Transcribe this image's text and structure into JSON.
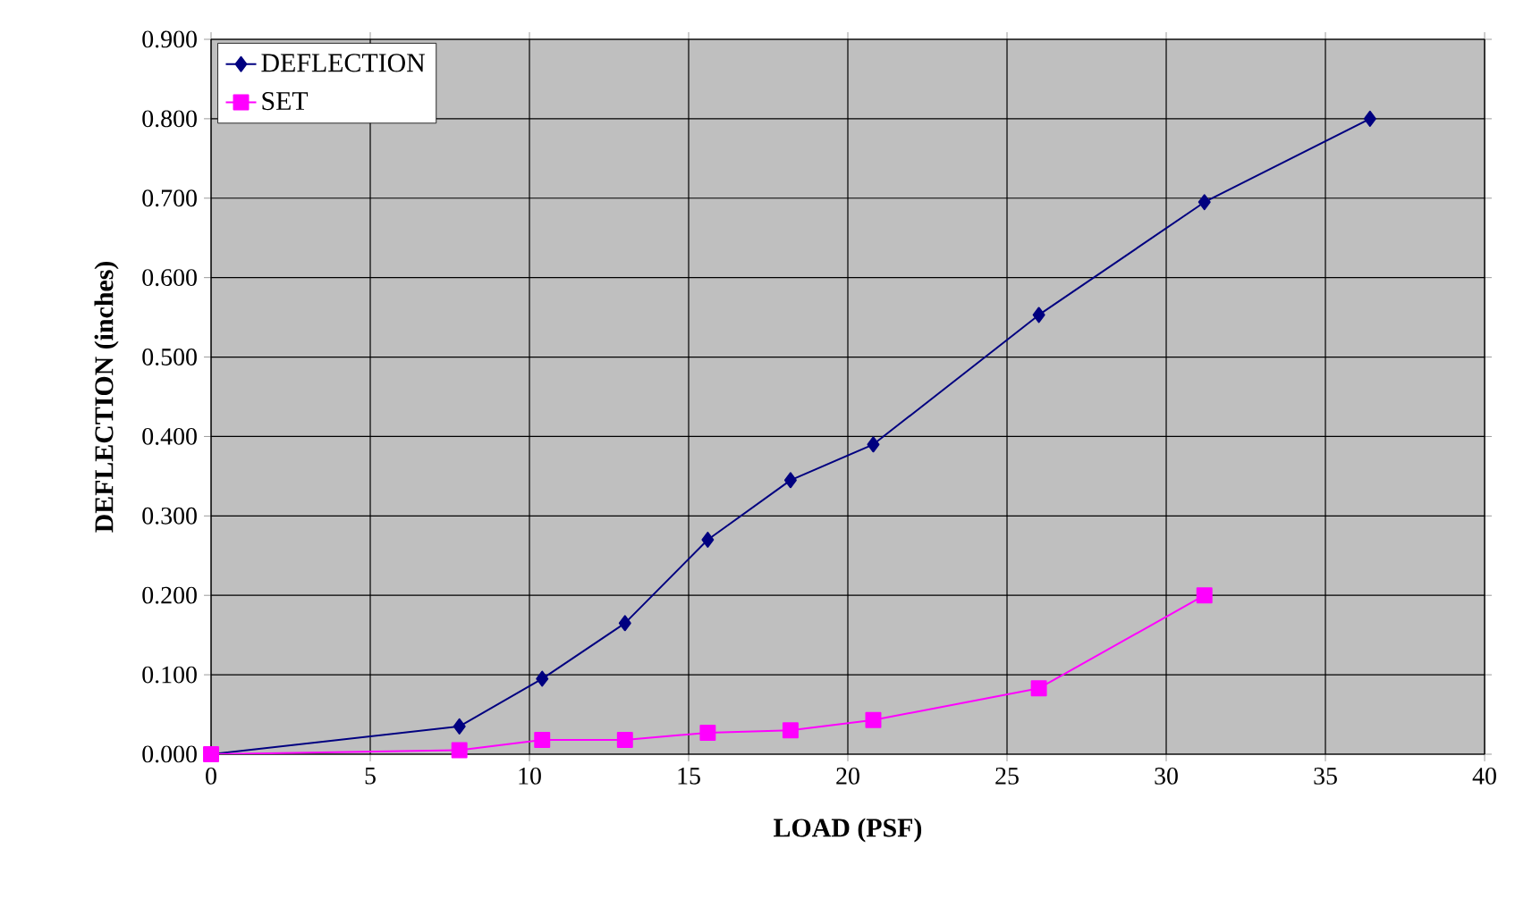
{
  "chart_data": {
    "type": "line",
    "xlabel": "LOAD (PSF)",
    "ylabel": "DEFLECTION (inches)",
    "xlim": [
      0,
      40
    ],
    "xticks": [
      0,
      5,
      10,
      15,
      20,
      25,
      30,
      35,
      40
    ],
    "ylim": [
      0,
      0.9
    ],
    "yticks": [
      {
        "value": 0,
        "label": "0.000"
      },
      {
        "value": 0.1,
        "label": "0.100"
      },
      {
        "value": 0.2,
        "label": "0.200"
      },
      {
        "value": 0.3,
        "label": "0.300"
      },
      {
        "value": 0.4,
        "label": "0.400"
      },
      {
        "value": 0.5,
        "label": "0.500"
      },
      {
        "value": 0.6,
        "label": "0.600"
      },
      {
        "value": 0.7,
        "label": "0.700"
      },
      {
        "value": 0.8,
        "label": "0.800"
      },
      {
        "value": 0.9,
        "label": "0.900"
      }
    ],
    "grid": true,
    "legend": "top left",
    "line_style": "solid",
    "series": [
      {
        "name": "DEFLECTION",
        "color": "#000080",
        "marker": "diamond",
        "x": [
          0,
          7.8,
          10.4,
          13,
          15.6,
          18.2,
          20.8,
          26,
          31.2,
          36.4
        ],
        "values": [
          0,
          0.035,
          0.095,
          0.165,
          0.27,
          0.345,
          0.39,
          0.553,
          0.695,
          0.8
        ]
      },
      {
        "name": "SET",
        "color": "#ff00ff",
        "marker": "square",
        "x": [
          0,
          7.8,
          10.4,
          13,
          15.6,
          18.2,
          20.8,
          26,
          31.2
        ],
        "values": [
          0,
          0.005,
          0.018,
          0.018,
          0.027,
          0.03,
          0.043,
          0.083,
          0.2
        ]
      }
    ]
  }
}
